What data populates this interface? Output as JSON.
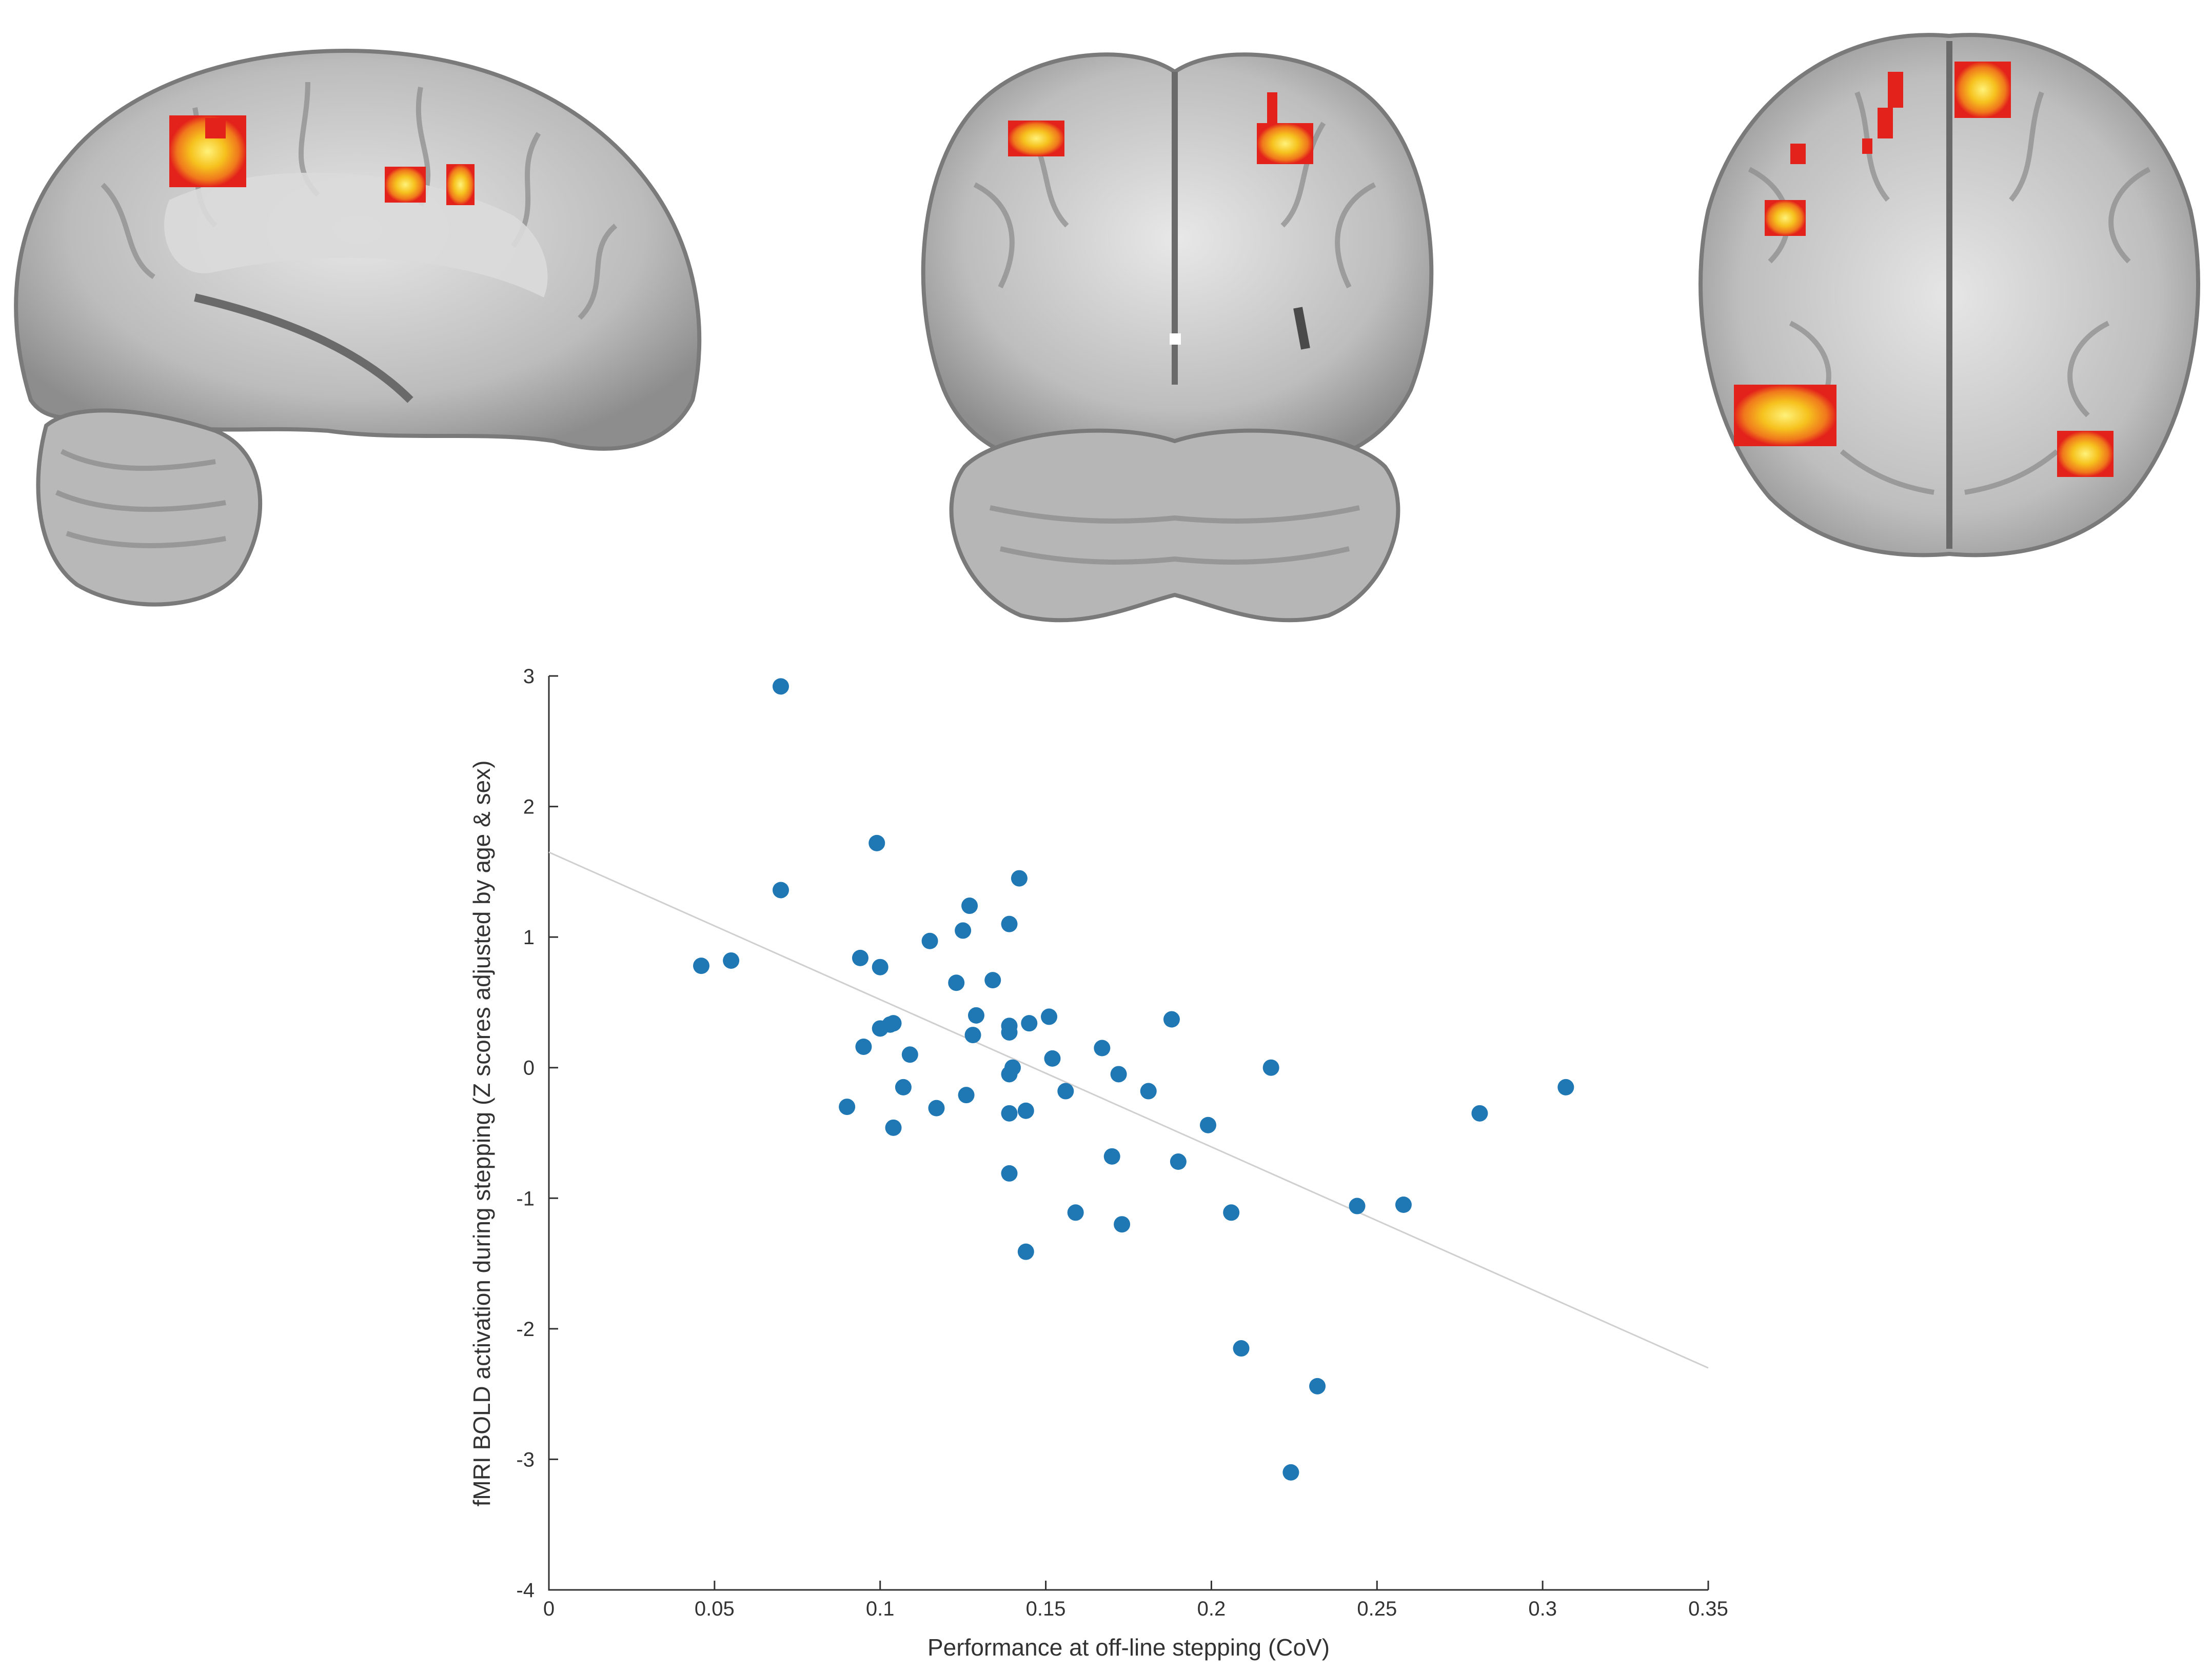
{
  "colors": {
    "point": "#1f77b4",
    "fit_line": "#cfcfcf",
    "axis": "#333333",
    "brain_gray": "#9e9e9e",
    "activation_hot": "#f5e21a",
    "activation_mid": "#f39a1c",
    "activation_low": "#e8231b"
  },
  "panels": [
    {
      "view": "sagittal",
      "icon": "brain-sagittal-slice-icon"
    },
    {
      "view": "coronal",
      "icon": "brain-coronal-slice-icon"
    },
    {
      "view": "axial",
      "icon": "brain-axial-slice-icon"
    }
  ],
  "chart_data": {
    "type": "scatter",
    "title": "",
    "xlabel": "Performance at off-line stepping (CoV)",
    "ylabel": "fMRI BOLD activation during stepping (Z scores adjusted by age & sex)",
    "xlim": [
      0,
      0.35
    ],
    "ylim": [
      -4,
      3
    ],
    "xticks": [
      "0",
      "0.05",
      "0.1",
      "0.15",
      "0.2",
      "0.25",
      "0.3",
      "0.35"
    ],
    "yticks": [
      "3",
      "2",
      "1",
      "0",
      "-1",
      "-2",
      "-3",
      "-4"
    ],
    "grid": false,
    "fit_line": {
      "x": [
        0,
        0.35
      ],
      "y": [
        1.65,
        -2.3
      ]
    },
    "points": [
      [
        0.046,
        0.78
      ],
      [
        0.055,
        0.82
      ],
      [
        0.07,
        2.92
      ],
      [
        0.07,
        1.36
      ],
      [
        0.09,
        -0.3
      ],
      [
        0.094,
        0.84
      ],
      [
        0.095,
        0.16
      ],
      [
        0.099,
        1.72
      ],
      [
        0.1,
        0.77
      ],
      [
        0.1,
        0.3
      ],
      [
        0.103,
        0.33
      ],
      [
        0.104,
        -0.46
      ],
      [
        0.104,
        0.34
      ],
      [
        0.107,
        -0.15
      ],
      [
        0.109,
        0.1
      ],
      [
        0.115,
        0.97
      ],
      [
        0.117,
        -0.31
      ],
      [
        0.123,
        0.65
      ],
      [
        0.125,
        1.05
      ],
      [
        0.126,
        -0.21
      ],
      [
        0.127,
        1.24
      ],
      [
        0.128,
        0.25
      ],
      [
        0.129,
        0.4
      ],
      [
        0.134,
        0.67
      ],
      [
        0.139,
        1.1
      ],
      [
        0.139,
        0.32
      ],
      [
        0.139,
        0.27
      ],
      [
        0.139,
        -0.05
      ],
      [
        0.139,
        -0.35
      ],
      [
        0.139,
        -0.81
      ],
      [
        0.14,
        0.0
      ],
      [
        0.142,
        1.45
      ],
      [
        0.144,
        -1.41
      ],
      [
        0.144,
        -0.33
      ],
      [
        0.145,
        0.34
      ],
      [
        0.151,
        0.39
      ],
      [
        0.152,
        0.07
      ],
      [
        0.156,
        -0.18
      ],
      [
        0.159,
        -1.11
      ],
      [
        0.167,
        0.15
      ],
      [
        0.17,
        -0.68
      ],
      [
        0.172,
        -0.05
      ],
      [
        0.173,
        -1.2
      ],
      [
        0.181,
        -0.18
      ],
      [
        0.188,
        0.37
      ],
      [
        0.19,
        -0.72
      ],
      [
        0.199,
        -0.44
      ],
      [
        0.206,
        -1.11
      ],
      [
        0.209,
        -2.15
      ],
      [
        0.218,
        0.0
      ],
      [
        0.224,
        -3.1
      ],
      [
        0.232,
        -2.44
      ],
      [
        0.244,
        -1.06
      ],
      [
        0.258,
        -1.05
      ],
      [
        0.281,
        -0.35
      ],
      [
        0.307,
        -0.15
      ]
    ]
  }
}
